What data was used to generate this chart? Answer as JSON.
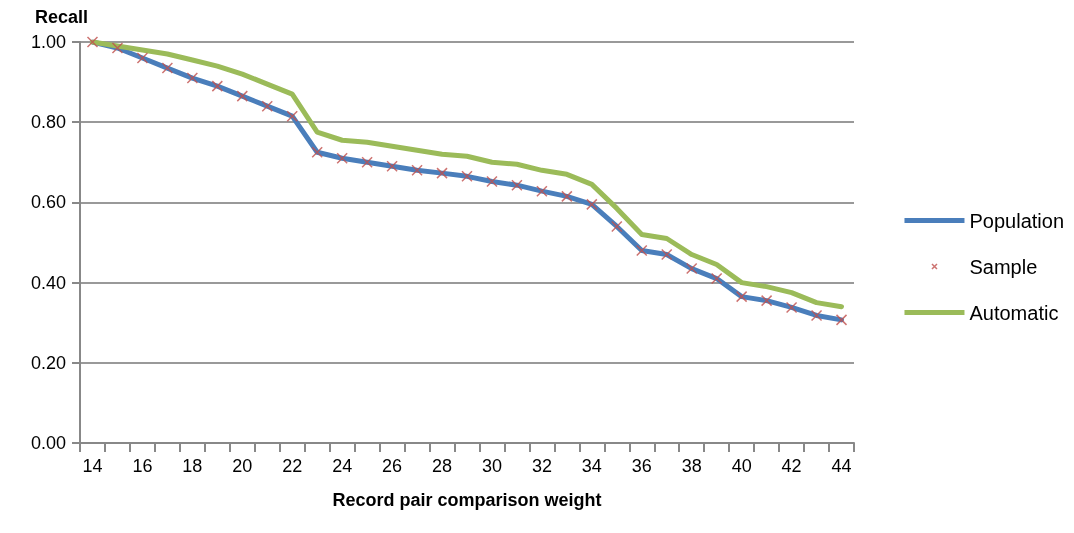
{
  "chart_data": {
    "type": "line",
    "xlabel": "Record pair comparison weight",
    "ylabel": "Recall",
    "categories": [
      "14",
      null,
      "16",
      null,
      "18",
      null,
      "20",
      null,
      "22",
      null,
      "24",
      null,
      "26",
      null,
      "28",
      null,
      "30",
      null,
      "32",
      null,
      "34",
      null,
      "36",
      null,
      "38",
      null,
      "40",
      null,
      "42",
      null,
      "44"
    ],
    "series": [
      {
        "name": "Population",
        "color": "#4a7ebb",
        "values": [
          1.0,
          0.985,
          0.96,
          0.935,
          0.91,
          0.89,
          0.865,
          0.84,
          0.815,
          0.725,
          0.71,
          0.7,
          0.69,
          0.68,
          0.673,
          0.665,
          0.652,
          0.643,
          0.628,
          0.615,
          0.595,
          0.54,
          0.48,
          0.47,
          0.435,
          0.41,
          0.365,
          0.355,
          0.338,
          0.318,
          0.307
        ]
      },
      {
        "name": "Sample",
        "type": "scatter",
        "marker": "cross",
        "color": "#c0504d",
        "values": [
          1.0,
          0.985,
          0.96,
          0.935,
          0.91,
          0.89,
          0.865,
          0.84,
          0.815,
          0.725,
          0.71,
          0.7,
          0.69,
          0.68,
          0.673,
          0.665,
          0.652,
          0.643,
          0.628,
          0.615,
          0.595,
          0.54,
          0.48,
          0.47,
          0.435,
          0.41,
          0.365,
          0.355,
          0.338,
          0.318,
          0.307
        ]
      },
      {
        "name": "Automatic",
        "color": "#9bbb59",
        "values": [
          1.0,
          0.99,
          0.98,
          0.97,
          0.955,
          0.94,
          0.92,
          0.895,
          0.87,
          0.775,
          0.755,
          0.75,
          0.74,
          0.73,
          0.72,
          0.715,
          0.7,
          0.695,
          0.68,
          0.67,
          0.645,
          0.585,
          0.52,
          0.51,
          0.47,
          0.445,
          0.4,
          0.39,
          0.375,
          0.35,
          0.34
        ]
      }
    ],
    "ylim": [
      0,
      1
    ],
    "yticks": [
      {
        "value": 0,
        "label": "0.00"
      },
      {
        "value": 0.2,
        "label": "0.20"
      },
      {
        "value": 0.4,
        "label": "0.40"
      },
      {
        "value": 0.6,
        "label": "0.60"
      },
      {
        "value": 0.8,
        "label": "0.80"
      },
      {
        "value": 1,
        "label": "1.00"
      }
    ],
    "grid": "y",
    "legend": "right",
    "marker": "none",
    "line_style": "solid"
  }
}
